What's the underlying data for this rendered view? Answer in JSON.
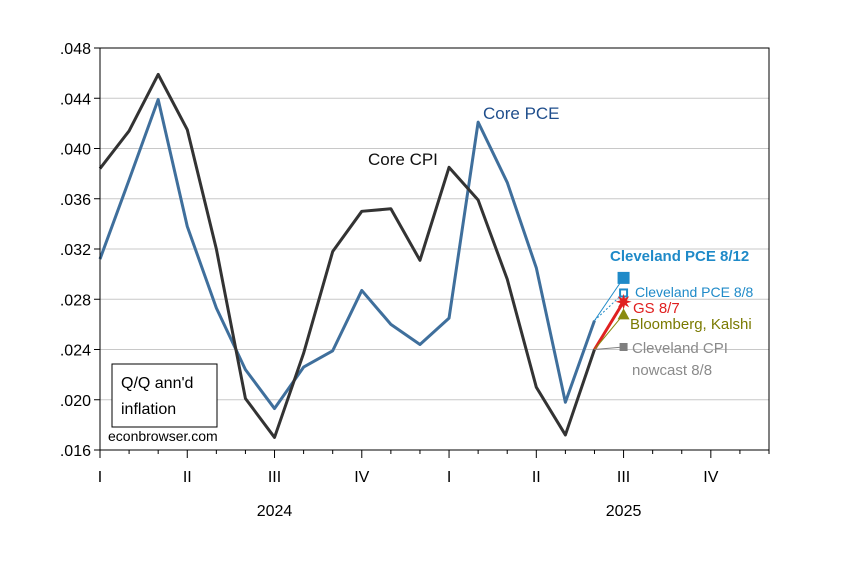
{
  "chart_data": {
    "type": "line",
    "xlabel": "",
    "ylabel": "",
    "ylim": [
      0.016,
      0.048
    ],
    "y_ticks": [
      ".016",
      ".020",
      ".024",
      ".028",
      ".032",
      ".036",
      ".040",
      ".044",
      ".048"
    ],
    "y_tick_values": [
      0.016,
      0.02,
      0.024,
      0.028,
      0.032,
      0.036,
      0.04,
      0.044,
      0.048
    ],
    "x_months": [
      "2024-01",
      "2024-02",
      "2024-03",
      "2024-04",
      "2024-05",
      "2024-06",
      "2024-07",
      "2024-08",
      "2024-09",
      "2024-10",
      "2024-11",
      "2024-12",
      "2025-01",
      "2025-02",
      "2025-03",
      "2025-04",
      "2025-05",
      "2025-06",
      "2025-07",
      "2025-08",
      "2025-09",
      "2025-10",
      "2025-11",
      "2025-12"
    ],
    "quarter_labels": [
      {
        "label": "I",
        "month": "2024-01"
      },
      {
        "label": "II",
        "month": "2024-04"
      },
      {
        "label": "III",
        "month": "2024-07"
      },
      {
        "label": "IV",
        "month": "2024-10"
      },
      {
        "label": "I",
        "month": "2025-01"
      },
      {
        "label": "II",
        "month": "2025-04"
      },
      {
        "label": "III",
        "month": "2025-07"
      },
      {
        "label": "IV",
        "month": "2025-10"
      }
    ],
    "year_labels": [
      {
        "label": "2024",
        "month": "2024-07"
      },
      {
        "label": "2025",
        "month": "2025-07"
      }
    ],
    "grid": true,
    "series": [
      {
        "name": "Core PCE",
        "color": "#3f6f9c",
        "x": [
          "2024-01",
          "2024-02",
          "2024-03",
          "2024-04",
          "2024-05",
          "2024-06",
          "2024-07",
          "2024-08",
          "2024-09",
          "2024-10",
          "2024-11",
          "2024-12",
          "2025-01",
          "2025-02",
          "2025-03",
          "2025-04",
          "2025-05",
          "2025-06"
        ],
        "values": [
          0.0312,
          0.0375,
          0.0439,
          0.0338,
          0.0273,
          0.0224,
          0.0193,
          0.0226,
          0.0239,
          0.0287,
          0.026,
          0.0244,
          0.0265,
          0.0421,
          0.0373,
          0.0305,
          0.0198,
          0.0263
        ]
      },
      {
        "name": "Core CPI",
        "color": "#333333",
        "x": [
          "2024-01",
          "2024-02",
          "2024-03",
          "2024-04",
          "2024-05",
          "2024-06",
          "2024-07",
          "2024-08",
          "2024-09",
          "2024-10",
          "2024-11",
          "2024-12",
          "2025-01",
          "2025-02",
          "2025-03",
          "2025-04",
          "2025-05",
          "2025-06"
        ],
        "values": [
          0.0384,
          0.0414,
          0.0459,
          0.0415,
          0.032,
          0.0201,
          0.017,
          0.0237,
          0.0318,
          0.035,
          0.0352,
          0.0311,
          0.0385,
          0.0359,
          0.0296,
          0.021,
          0.0172,
          0.024
        ]
      }
    ],
    "nowcasts": [
      {
        "name": "Cleveland PCE 8/12",
        "label": "Cleveland PCE 8/12",
        "color": "#1f8ac8",
        "marker": "square-filled",
        "month": "2025-07",
        "value": 0.0297,
        "from_month": "2025-06",
        "from_value": 0.0263
      },
      {
        "name": "Cleveland PCE 8/8",
        "label": "Cleveland PCE 8/8",
        "color": "#1f8ac8",
        "marker": "square-open",
        "month": "2025-07",
        "value": 0.0285,
        "from_month": "2025-06",
        "from_value": 0.0263
      },
      {
        "name": "GS 8/7",
        "label": "GS 8/7",
        "color": "#e02020",
        "marker": "star",
        "month": "2025-07",
        "value": 0.0278,
        "from_month": "2025-06",
        "from_value": 0.024
      },
      {
        "name": "Bloomberg, Kalshi",
        "label": "Bloomberg, Kalshi",
        "color": "#8a8a10",
        "marker": "triangle",
        "month": "2025-07",
        "value": 0.0268,
        "from_month": "2025-06",
        "from_value": 0.024
      },
      {
        "name": "Cleveland CPI nowcast 8/8",
        "label_lines": [
          "Cleveland CPI",
          "nowcast 8/8"
        ],
        "color": "#7f7f7f",
        "marker": "square-filled",
        "month": "2025-07",
        "value": 0.0242,
        "from_month": "2025-06",
        "from_value": 0.024
      }
    ],
    "annotations": {
      "core_pce": "Core PCE",
      "core_cpi": "Core CPI",
      "box_lines": [
        "Q/Q ann'd",
        "inflation"
      ],
      "source": "econbrowser.com"
    }
  }
}
